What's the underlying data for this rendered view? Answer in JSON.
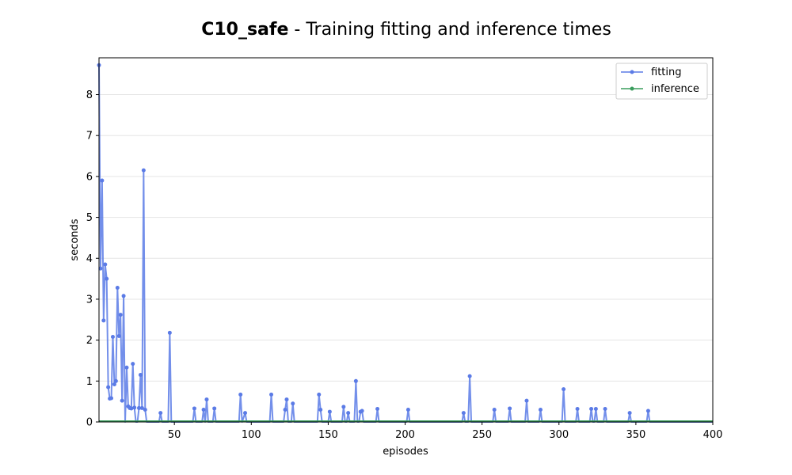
{
  "chart_data": {
    "type": "line",
    "title_bold": "C10_safe",
    "title_rest": " - Training fitting and inference times",
    "xlabel": "episodes",
    "ylabel": "seconds",
    "xlim": [
      1,
      400
    ],
    "ylim": [
      0,
      8.9
    ],
    "x_ticks": [
      50,
      100,
      150,
      200,
      250,
      300,
      350,
      400
    ],
    "y_ticks": [
      0,
      1,
      2,
      3,
      4,
      5,
      6,
      7,
      8
    ],
    "grid": "horizontal",
    "legend_position": "top-right",
    "series": [
      {
        "name": "fitting",
        "color": "#5b7be6",
        "points": [
          [
            1,
            8.72
          ],
          [
            2,
            3.75
          ],
          [
            3,
            5.9
          ],
          [
            4,
            2.48
          ],
          [
            5,
            3.85
          ],
          [
            6,
            3.5
          ],
          [
            7,
            0.85
          ],
          [
            8,
            0.57
          ],
          [
            9,
            0.58
          ],
          [
            10,
            2.08
          ],
          [
            11,
            0.92
          ],
          [
            12,
            1.0
          ],
          [
            13,
            3.28
          ],
          [
            14,
            2.1
          ],
          [
            15,
            2.62
          ],
          [
            16,
            0.52
          ],
          [
            17,
            3.08
          ],
          [
            18,
            0
          ],
          [
            19,
            1.33
          ],
          [
            20,
            0.38
          ],
          [
            21,
            0.34
          ],
          [
            22,
            0.33
          ],
          [
            23,
            1.42
          ],
          [
            24,
            0.35
          ],
          [
            25,
            0
          ],
          [
            26,
            0
          ],
          [
            27,
            0.34
          ],
          [
            28,
            1.15
          ],
          [
            29,
            0.34
          ],
          [
            30,
            6.15
          ],
          [
            31,
            0.3
          ],
          [
            32,
            0
          ],
          [
            40,
            0
          ],
          [
            41,
            0.22
          ],
          [
            42,
            0
          ],
          [
            46,
            0
          ],
          [
            47,
            2.18
          ],
          [
            48,
            0
          ],
          [
            62,
            0
          ],
          [
            63,
            0.33
          ],
          [
            64,
            0
          ],
          [
            68,
            0
          ],
          [
            69,
            0.3
          ],
          [
            70,
            0
          ],
          [
            71,
            0.55
          ],
          [
            72,
            0
          ],
          [
            75,
            0
          ],
          [
            76,
            0.33
          ],
          [
            77,
            0
          ],
          [
            92,
            0
          ],
          [
            93,
            0.67
          ],
          [
            94,
            0
          ],
          [
            96,
            0.22
          ],
          [
            97,
            0
          ],
          [
            112,
            0
          ],
          [
            113,
            0.67
          ],
          [
            114,
            0
          ],
          [
            121,
            0
          ],
          [
            122,
            0.3
          ],
          [
            123,
            0.55
          ],
          [
            124,
            0
          ],
          [
            126,
            0
          ],
          [
            127,
            0.45
          ],
          [
            128,
            0
          ],
          [
            143,
            0
          ],
          [
            144,
            0.67
          ],
          [
            145,
            0.3
          ],
          [
            146,
            0
          ],
          [
            150,
            0
          ],
          [
            151,
            0.25
          ],
          [
            152,
            0
          ],
          [
            159,
            0
          ],
          [
            160,
            0.37
          ],
          [
            161,
            0
          ],
          [
            162,
            0
          ],
          [
            163,
            0.22
          ],
          [
            164,
            0
          ],
          [
            167,
            0
          ],
          [
            168,
            1.0
          ],
          [
            169,
            0
          ],
          [
            170,
            0
          ],
          [
            171,
            0.25
          ],
          [
            172,
            0.27
          ],
          [
            173,
            0
          ],
          [
            181,
            0
          ],
          [
            182,
            0.32
          ],
          [
            183,
            0
          ],
          [
            201,
            0
          ],
          [
            202,
            0.3
          ],
          [
            203,
            0
          ],
          [
            237,
            0
          ],
          [
            238,
            0.22
          ],
          [
            239,
            0
          ],
          [
            241,
            0
          ],
          [
            242,
            1.12
          ],
          [
            243,
            0
          ],
          [
            257,
            0
          ],
          [
            258,
            0.3
          ],
          [
            259,
            0
          ],
          [
            267,
            0
          ],
          [
            268,
            0.33
          ],
          [
            269,
            0
          ],
          [
            278,
            0
          ],
          [
            279,
            0.52
          ],
          [
            280,
            0
          ],
          [
            287,
            0
          ],
          [
            288,
            0.3
          ],
          [
            289,
            0
          ],
          [
            302,
            0
          ],
          [
            303,
            0.8
          ],
          [
            304,
            0
          ],
          [
            311,
            0
          ],
          [
            312,
            0.32
          ],
          [
            313,
            0
          ],
          [
            320,
            0
          ],
          [
            321,
            0.32
          ],
          [
            322,
            0
          ],
          [
            323,
            0
          ],
          [
            324,
            0.32
          ],
          [
            325,
            0
          ],
          [
            329,
            0
          ],
          [
            330,
            0.32
          ],
          [
            331,
            0
          ],
          [
            345,
            0
          ],
          [
            346,
            0.22
          ],
          [
            347,
            0
          ],
          [
            357,
            0
          ],
          [
            358,
            0.27
          ],
          [
            359,
            0
          ],
          [
            400,
            0
          ]
        ]
      },
      {
        "name": "inference",
        "color": "#3a9d5d",
        "points": [
          [
            1,
            0.02
          ],
          [
            400,
            0.02
          ]
        ]
      }
    ]
  }
}
